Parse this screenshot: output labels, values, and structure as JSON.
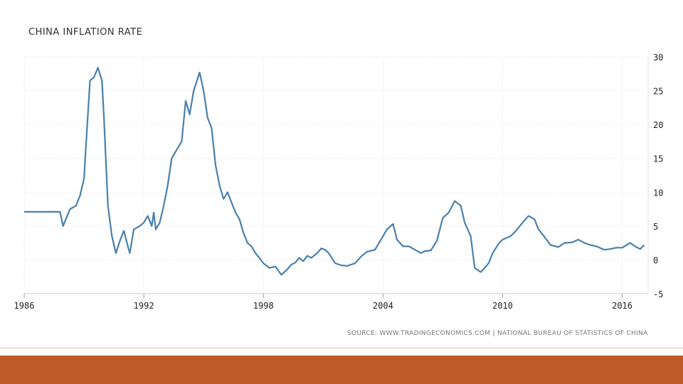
{
  "source": "SOURCE: WWW.TRADINGECONOMICS.COM | NATIONAL BUREAU OF STATISTICS OF CHINA",
  "colors": {
    "line": "#4a80ad",
    "grid": "#e2e2e2",
    "footer": "#bf5b28"
  },
  "chart_data": {
    "type": "line",
    "title": "CHINA INFLATION RATE",
    "xlim": [
      1986,
      2017.3
    ],
    "ylim": [
      -5,
      30
    ],
    "xticks": [
      1986,
      1992,
      1998,
      2004,
      2010,
      2016
    ],
    "xtick_labels": [
      "1986",
      "1992",
      "1998",
      "2004",
      "2010",
      "2016"
    ],
    "yticks": [
      30,
      25,
      20,
      15,
      10,
      5,
      0,
      -5
    ],
    "ytick_labels": [
      "30",
      "25",
      "20",
      "15",
      "10",
      "5",
      "0",
      "-5"
    ],
    "grid": true,
    "series": [
      {
        "x": [
          1986.0,
          1986.5,
          1987.0,
          1987.8,
          1987.95,
          1988.3,
          1988.6,
          1988.8,
          1989.0,
          1989.1,
          1989.3,
          1989.5,
          1989.7,
          1989.9,
          1990.0,
          1990.2,
          1990.4,
          1990.6,
          1990.8,
          1991.0,
          1991.2,
          1991.3,
          1991.5,
          1991.8,
          1992.0,
          1992.2,
          1992.4,
          1992.5,
          1992.6,
          1992.8,
          1993.0,
          1993.2,
          1993.4,
          1993.7,
          1993.9,
          1994.1,
          1994.3,
          1994.5,
          1994.8,
          1995.0,
          1995.2,
          1995.4,
          1995.6,
          1995.8,
          1996.0,
          1996.2,
          1996.4,
          1996.6,
          1996.8,
          1997.0,
          1997.2,
          1997.4,
          1997.6,
          1997.8,
          1998.0,
          1998.3,
          1998.6,
          1998.9,
          1999.2,
          1999.4,
          1999.6,
          1999.8,
          2000.0,
          2000.2,
          2000.4,
          2000.7,
          2000.9,
          2001.1,
          2001.3,
          2001.6,
          2001.9,
          2002.2,
          2002.6,
          2002.9,
          2003.2,
          2003.6,
          2003.9,
          2004.2,
          2004.5,
          2004.7,
          2005.0,
          2005.3,
          2005.6,
          2005.9,
          2006.1,
          2006.4,
          2006.7,
          2007.0,
          2007.3,
          2007.6,
          2007.9,
          2008.1,
          2008.4,
          2008.6,
          2008.9,
          2009.1,
          2009.3,
          2009.5,
          2009.8,
          2010.0,
          2010.4,
          2010.7,
          2011.0,
          2011.3,
          2011.6,
          2011.8,
          2012.1,
          2012.4,
          2012.8,
          2013.1,
          2013.5,
          2013.8,
          2014.1,
          2014.4,
          2014.7,
          2015.1,
          2015.4,
          2015.7,
          2016.0,
          2016.4,
          2016.7,
          2016.9,
          2017.1
        ],
        "y": [
          7.1,
          7.1,
          7.1,
          7.1,
          5.0,
          7.5,
          8.0,
          9.5,
          12.0,
          17.0,
          26.5,
          27.0,
          28.4,
          26.5,
          21.0,
          8.0,
          3.5,
          1.0,
          2.8,
          4.3,
          2.0,
          1.0,
          4.5,
          5.0,
          5.5,
          6.5,
          5.0,
          7.0,
          4.5,
          5.5,
          8.0,
          11.0,
          15.0,
          16.5,
          17.5,
          23.5,
          21.5,
          25.0,
          27.7,
          25.0,
          21.0,
          19.5,
          14.0,
          11.0,
          9.0,
          10.0,
          8.5,
          7.0,
          6.0,
          4.0,
          2.5,
          2.0,
          1.0,
          0.3,
          -0.5,
          -1.2,
          -1.0,
          -2.2,
          -1.4,
          -0.7,
          -0.4,
          0.3,
          -0.2,
          0.6,
          0.3,
          1.0,
          1.7,
          1.5,
          0.9,
          -0.5,
          -0.8,
          -0.9,
          -0.5,
          0.5,
          1.2,
          1.5,
          3.0,
          4.5,
          5.3,
          3.0,
          2.0,
          2.0,
          1.5,
          1.0,
          1.3,
          1.4,
          2.8,
          6.2,
          7.0,
          8.7,
          8.0,
          5.5,
          3.5,
          -1.2,
          -1.8,
          -1.2,
          -0.5,
          1.0,
          2.4,
          3.0,
          3.5,
          4.4,
          5.5,
          6.5,
          6.0,
          4.5,
          3.4,
          2.2,
          1.9,
          2.5,
          2.6,
          3.0,
          2.5,
          2.2,
          2.0,
          1.5,
          1.6,
          1.8,
          1.8,
          2.5,
          1.9,
          1.6,
          2.2
        ]
      }
    ]
  }
}
